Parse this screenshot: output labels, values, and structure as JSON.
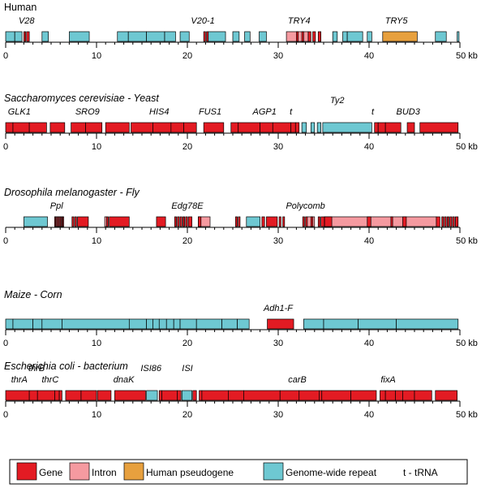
{
  "colors": {
    "gene": "#e31b23",
    "intron": "#f59aa0",
    "pseudogene": "#e7a03e",
    "repeat": "#6ec8d2",
    "outline": "#000000"
  },
  "legend": {
    "items": [
      {
        "label": "Gene",
        "kind": "gene"
      },
      {
        "label": "Intron",
        "kind": "intron"
      },
      {
        "label": "Human pseudogene",
        "kind": "pseudogene"
      },
      {
        "label": "Genome-wide repeat",
        "kind": "repeat"
      },
      {
        "label": "t - tRNA",
        "kind": "text"
      }
    ]
  },
  "axis": {
    "ticks": [
      0,
      10,
      20,
      30,
      40,
      50
    ],
    "unit": "kb",
    "max_kb": 50
  },
  "genomes": [
    {
      "title": "Human",
      "italic": false,
      "labels": [
        {
          "text": "V28",
          "kb": 2.3,
          "row": 0
        },
        {
          "text": "V20-1",
          "kb": 21.7,
          "row": 0
        },
        {
          "text": "TRY4",
          "kb": 32.3,
          "row": 0
        },
        {
          "text": "TRY5",
          "kb": 43.0,
          "row": 0
        }
      ],
      "features": [
        {
          "kind": "repeat",
          "start": 0.0,
          "end": 1.0
        },
        {
          "kind": "repeat",
          "start": 1.0,
          "end": 1.8
        },
        {
          "kind": "gene",
          "start": 2.0,
          "end": 2.2
        },
        {
          "kind": "gene",
          "start": 2.3,
          "end": 2.6
        },
        {
          "kind": "repeat",
          "start": 4.0,
          "end": 4.7
        },
        {
          "kind": "repeat",
          "start": 7.0,
          "end": 9.2
        },
        {
          "kind": "repeat",
          "start": 12.3,
          "end": 13.5
        },
        {
          "kind": "repeat",
          "start": 13.5,
          "end": 15.5
        },
        {
          "kind": "repeat",
          "start": 15.5,
          "end": 17.5
        },
        {
          "kind": "repeat",
          "start": 17.5,
          "end": 18.7
        },
        {
          "kind": "repeat",
          "start": 19.2,
          "end": 20.2
        },
        {
          "kind": "gene",
          "start": 21.8,
          "end": 22.0
        },
        {
          "kind": "gene",
          "start": 22.1,
          "end": 22.3
        },
        {
          "kind": "repeat",
          "start": 22.3,
          "end": 24.2
        },
        {
          "kind": "repeat",
          "start": 25.0,
          "end": 25.7
        },
        {
          "kind": "repeat",
          "start": 26.3,
          "end": 26.9
        },
        {
          "kind": "repeat",
          "start": 27.9,
          "end": 28.7
        },
        {
          "kind": "intron",
          "start": 30.9,
          "end": 33.3
        },
        {
          "kind": "gene",
          "start": 32.0,
          "end": 32.2
        },
        {
          "kind": "gene",
          "start": 32.6,
          "end": 32.8
        },
        {
          "kind": "gene",
          "start": 33.3,
          "end": 33.6
        },
        {
          "kind": "gene",
          "start": 33.8,
          "end": 34.1
        },
        {
          "kind": "gene",
          "start": 34.4,
          "end": 34.7
        },
        {
          "kind": "repeat",
          "start": 36.0,
          "end": 36.5
        },
        {
          "kind": "repeat",
          "start": 37.1,
          "end": 37.6
        },
        {
          "kind": "repeat",
          "start": 37.6,
          "end": 39.3
        },
        {
          "kind": "repeat",
          "start": 39.8,
          "end": 40.3
        },
        {
          "kind": "pseudogene",
          "start": 41.5,
          "end": 45.3
        },
        {
          "kind": "repeat",
          "start": 47.3,
          "end": 48.5
        },
        {
          "kind": "repeat",
          "start": 49.7,
          "end": 49.9
        }
      ]
    },
    {
      "title": "Saccharomyces cerevisiae - Yeast",
      "italic": true,
      "labels": [
        {
          "text": "GLK1",
          "kb": 1.5,
          "row": 0
        },
        {
          "text": "SRO9",
          "kb": 9.0,
          "row": 0
        },
        {
          "text": "HIS4",
          "kb": 16.9,
          "row": 0
        },
        {
          "text": "FUS1",
          "kb": 22.5,
          "row": 0
        },
        {
          "text": "AGP1",
          "kb": 28.5,
          "row": 0
        },
        {
          "text": "t",
          "kb": 31.4,
          "row": 0
        },
        {
          "text": "Ty2",
          "kb": 36.5,
          "row": -1
        },
        {
          "text": "t",
          "kb": 40.4,
          "row": 0
        },
        {
          "text": "BUD3",
          "kb": 44.3,
          "row": 0
        }
      ],
      "features": [
        {
          "kind": "gene",
          "start": 0.0,
          "end": 0.8
        },
        {
          "kind": "gene",
          "start": 0.8,
          "end": 2.6
        },
        {
          "kind": "gene",
          "start": 2.6,
          "end": 4.5
        },
        {
          "kind": "gene",
          "start": 4.9,
          "end": 6.5
        },
        {
          "kind": "gene",
          "start": 7.2,
          "end": 8.8
        },
        {
          "kind": "gene",
          "start": 8.8,
          "end": 10.6
        },
        {
          "kind": "gene",
          "start": 11.0,
          "end": 13.6
        },
        {
          "kind": "gene",
          "start": 13.8,
          "end": 16.2
        },
        {
          "kind": "gene",
          "start": 16.2,
          "end": 18.2
        },
        {
          "kind": "gene",
          "start": 18.2,
          "end": 19.6
        },
        {
          "kind": "gene",
          "start": 19.6,
          "end": 21.0
        },
        {
          "kind": "gene",
          "start": 21.8,
          "end": 24.0
        },
        {
          "kind": "gene",
          "start": 24.8,
          "end": 25.6
        },
        {
          "kind": "gene",
          "start": 25.6,
          "end": 28.0
        },
        {
          "kind": "gene",
          "start": 28.0,
          "end": 29.4
        },
        {
          "kind": "gene",
          "start": 29.4,
          "end": 31.4
        },
        {
          "kind": "gene",
          "start": 31.4,
          "end": 31.9
        },
        {
          "kind": "gene",
          "start": 31.9,
          "end": 32.3
        },
        {
          "kind": "repeat",
          "start": 32.6,
          "end": 33.1
        },
        {
          "kind": "repeat",
          "start": 33.6,
          "end": 34.0
        },
        {
          "kind": "repeat",
          "start": 34.3,
          "end": 34.7
        },
        {
          "kind": "repeat",
          "start": 34.9,
          "end": 40.3
        },
        {
          "kind": "gene",
          "start": 40.6,
          "end": 41.0
        },
        {
          "kind": "gene",
          "start": 41.0,
          "end": 41.8
        },
        {
          "kind": "gene",
          "start": 41.8,
          "end": 43.5
        },
        {
          "kind": "gene",
          "start": 44.2,
          "end": 45.0
        },
        {
          "kind": "gene",
          "start": 45.6,
          "end": 49.8
        }
      ]
    },
    {
      "title": "Drosophila melanogaster - Fly",
      "italic": true,
      "labels": [
        {
          "text": "Ppl",
          "kb": 5.6,
          "row": 0
        },
        {
          "text": "Edg78E",
          "kb": 20.0,
          "row": 0
        },
        {
          "text": "Polycomb",
          "kb": 33.0,
          "row": 0
        }
      ],
      "features": [
        {
          "kind": "repeat",
          "start": 2.0,
          "end": 4.6
        },
        {
          "kind": "intron",
          "start": 5.4,
          "end": 6.4
        },
        {
          "kind": "gene",
          "start": 5.4,
          "end": 5.5
        },
        {
          "kind": "gene",
          "start": 5.6,
          "end": 5.7
        },
        {
          "kind": "gene",
          "start": 5.8,
          "end": 5.9
        },
        {
          "kind": "gene",
          "start": 6.0,
          "end": 6.1
        },
        {
          "kind": "gene",
          "start": 6.2,
          "end": 6.3
        },
        {
          "kind": "gene",
          "start": 7.3,
          "end": 7.5
        },
        {
          "kind": "gene",
          "start": 7.6,
          "end": 7.8
        },
        {
          "kind": "gene",
          "start": 7.9,
          "end": 9.1
        },
        {
          "kind": "intron",
          "start": 10.9,
          "end": 11.1
        },
        {
          "kind": "gene",
          "start": 11.1,
          "end": 11.3
        },
        {
          "kind": "gene",
          "start": 11.4,
          "end": 13.6
        },
        {
          "kind": "gene",
          "start": 16.6,
          "end": 17.6
        },
        {
          "kind": "gene",
          "start": 18.6,
          "end": 18.8
        },
        {
          "kind": "gene",
          "start": 18.9,
          "end": 19.1
        },
        {
          "kind": "gene",
          "start": 19.2,
          "end": 19.4
        },
        {
          "kind": "gene",
          "start": 19.5,
          "end": 19.7
        },
        {
          "kind": "gene",
          "start": 19.8,
          "end": 20.0
        },
        {
          "kind": "gene",
          "start": 20.1,
          "end": 20.5
        },
        {
          "kind": "intron",
          "start": 21.2,
          "end": 22.5
        },
        {
          "kind": "gene",
          "start": 21.2,
          "end": 21.5
        },
        {
          "kind": "gene",
          "start": 25.3,
          "end": 25.5
        },
        {
          "kind": "gene",
          "start": 25.6,
          "end": 25.8
        },
        {
          "kind": "repeat",
          "start": 26.5,
          "end": 28.0
        },
        {
          "kind": "gene",
          "start": 28.2,
          "end": 28.5
        },
        {
          "kind": "gene",
          "start": 28.7,
          "end": 29.9
        },
        {
          "kind": "gene",
          "start": 30.1,
          "end": 30.3
        },
        {
          "kind": "gene",
          "start": 30.5,
          "end": 30.7
        },
        {
          "kind": "gene",
          "start": 32.7,
          "end": 32.9
        },
        {
          "kind": "gene",
          "start": 33.0,
          "end": 33.2
        },
        {
          "kind": "intron",
          "start": 33.2,
          "end": 34.0
        },
        {
          "kind": "gene",
          "start": 33.6,
          "end": 33.8
        },
        {
          "kind": "gene",
          "start": 34.4,
          "end": 34.6
        },
        {
          "kind": "gene",
          "start": 34.7,
          "end": 35.1
        },
        {
          "kind": "intron",
          "start": 35.1,
          "end": 47.4
        },
        {
          "kind": "gene",
          "start": 35.1,
          "end": 35.9
        },
        {
          "kind": "gene",
          "start": 39.8,
          "end": 40.2
        },
        {
          "kind": "gene",
          "start": 42.4,
          "end": 42.6
        },
        {
          "kind": "gene",
          "start": 43.7,
          "end": 44.1
        },
        {
          "kind": "gene",
          "start": 47.4,
          "end": 47.8
        },
        {
          "kind": "gene",
          "start": 48.0,
          "end": 48.2
        },
        {
          "kind": "gene",
          "start": 48.3,
          "end": 48.5
        },
        {
          "kind": "gene",
          "start": 48.6,
          "end": 48.8
        },
        {
          "kind": "gene",
          "start": 48.9,
          "end": 49.1
        },
        {
          "kind": "gene",
          "start": 49.2,
          "end": 49.4
        },
        {
          "kind": "gene",
          "start": 49.5,
          "end": 49.8
        }
      ]
    },
    {
      "title": "Maize - Corn",
      "italic": true,
      "labels": [
        {
          "text": "Adh1-F",
          "kb": 30.0,
          "row": 0
        }
      ],
      "features": [
        {
          "kind": "repeat",
          "start": 0.0,
          "end": 0.8
        },
        {
          "kind": "repeat",
          "start": 0.8,
          "end": 3.0
        },
        {
          "kind": "repeat",
          "start": 3.0,
          "end": 4.0
        },
        {
          "kind": "repeat",
          "start": 4.0,
          "end": 6.2
        },
        {
          "kind": "repeat",
          "start": 6.2,
          "end": 13.6
        },
        {
          "kind": "repeat",
          "start": 13.6,
          "end": 15.5
        },
        {
          "kind": "repeat",
          "start": 15.5,
          "end": 16.2
        },
        {
          "kind": "repeat",
          "start": 16.2,
          "end": 16.9
        },
        {
          "kind": "repeat",
          "start": 16.9,
          "end": 17.7
        },
        {
          "kind": "repeat",
          "start": 17.7,
          "end": 18.5
        },
        {
          "kind": "repeat",
          "start": 18.5,
          "end": 19.2
        },
        {
          "kind": "repeat",
          "start": 19.2,
          "end": 21.0
        },
        {
          "kind": "repeat",
          "start": 21.0,
          "end": 23.8
        },
        {
          "kind": "repeat",
          "start": 23.8,
          "end": 25.5
        },
        {
          "kind": "repeat",
          "start": 25.5,
          "end": 26.8
        },
        {
          "kind": "gene",
          "start": 28.8,
          "end": 31.7
        },
        {
          "kind": "repeat",
          "start": 32.8,
          "end": 35.0
        },
        {
          "kind": "repeat",
          "start": 35.0,
          "end": 38.8
        },
        {
          "kind": "repeat",
          "start": 38.8,
          "end": 43.0
        },
        {
          "kind": "repeat",
          "start": 43.0,
          "end": 49.8
        }
      ]
    },
    {
      "title": "Escherichia coli - bacterium",
      "italic": true,
      "labels": [
        {
          "text": "thrB",
          "kb": 3.4,
          "row": -1
        },
        {
          "text": "thrA",
          "kb": 1.5,
          "row": 0
        },
        {
          "text": "thrC",
          "kb": 4.9,
          "row": 0
        },
        {
          "text": "ISI86",
          "kb": 16.0,
          "row": -1
        },
        {
          "text": "ISI",
          "kb": 20.0,
          "row": -1
        },
        {
          "text": "dnaK",
          "kb": 13.0,
          "row": 0
        },
        {
          "text": "carB",
          "kb": 32.1,
          "row": 0
        },
        {
          "text": "fixA",
          "kb": 42.1,
          "row": 0
        }
      ],
      "features": [
        {
          "kind": "gene",
          "start": 0.0,
          "end": 2.6
        },
        {
          "kind": "gene",
          "start": 2.6,
          "end": 3.5
        },
        {
          "kind": "gene",
          "start": 3.5,
          "end": 5.4
        },
        {
          "kind": "gene",
          "start": 5.4,
          "end": 5.9
        },
        {
          "kind": "gene",
          "start": 5.9,
          "end": 6.2
        },
        {
          "kind": "gene",
          "start": 6.6,
          "end": 8.3
        },
        {
          "kind": "gene",
          "start": 8.3,
          "end": 10.0
        },
        {
          "kind": "gene",
          "start": 10.1,
          "end": 11.6
        },
        {
          "kind": "gene",
          "start": 12.0,
          "end": 15.4
        },
        {
          "kind": "repeat",
          "start": 15.5,
          "end": 16.7
        },
        {
          "kind": "gene",
          "start": 16.9,
          "end": 17.2
        },
        {
          "kind": "gene",
          "start": 17.2,
          "end": 18.9
        },
        {
          "kind": "gene",
          "start": 18.9,
          "end": 19.3
        },
        {
          "kind": "repeat",
          "start": 19.4,
          "end": 20.5
        },
        {
          "kind": "gene",
          "start": 20.6,
          "end": 21.0
        },
        {
          "kind": "gene",
          "start": 21.3,
          "end": 21.6
        },
        {
          "kind": "gene",
          "start": 21.6,
          "end": 24.5
        },
        {
          "kind": "gene",
          "start": 24.5,
          "end": 26.2
        },
        {
          "kind": "gene",
          "start": 26.2,
          "end": 30.2
        },
        {
          "kind": "gene",
          "start": 30.2,
          "end": 32.3
        },
        {
          "kind": "gene",
          "start": 32.3,
          "end": 34.5
        },
        {
          "kind": "gene",
          "start": 34.5,
          "end": 34.8
        },
        {
          "kind": "gene",
          "start": 34.8,
          "end": 38.0
        },
        {
          "kind": "gene",
          "start": 38.0,
          "end": 40.8
        },
        {
          "kind": "gene",
          "start": 41.2,
          "end": 41.8
        },
        {
          "kind": "gene",
          "start": 41.8,
          "end": 42.9
        },
        {
          "kind": "gene",
          "start": 42.9,
          "end": 43.7
        },
        {
          "kind": "gene",
          "start": 43.7,
          "end": 45.0
        },
        {
          "kind": "gene",
          "start": 45.0,
          "end": 46.9
        },
        {
          "kind": "gene",
          "start": 47.3,
          "end": 49.7
        }
      ]
    }
  ]
}
